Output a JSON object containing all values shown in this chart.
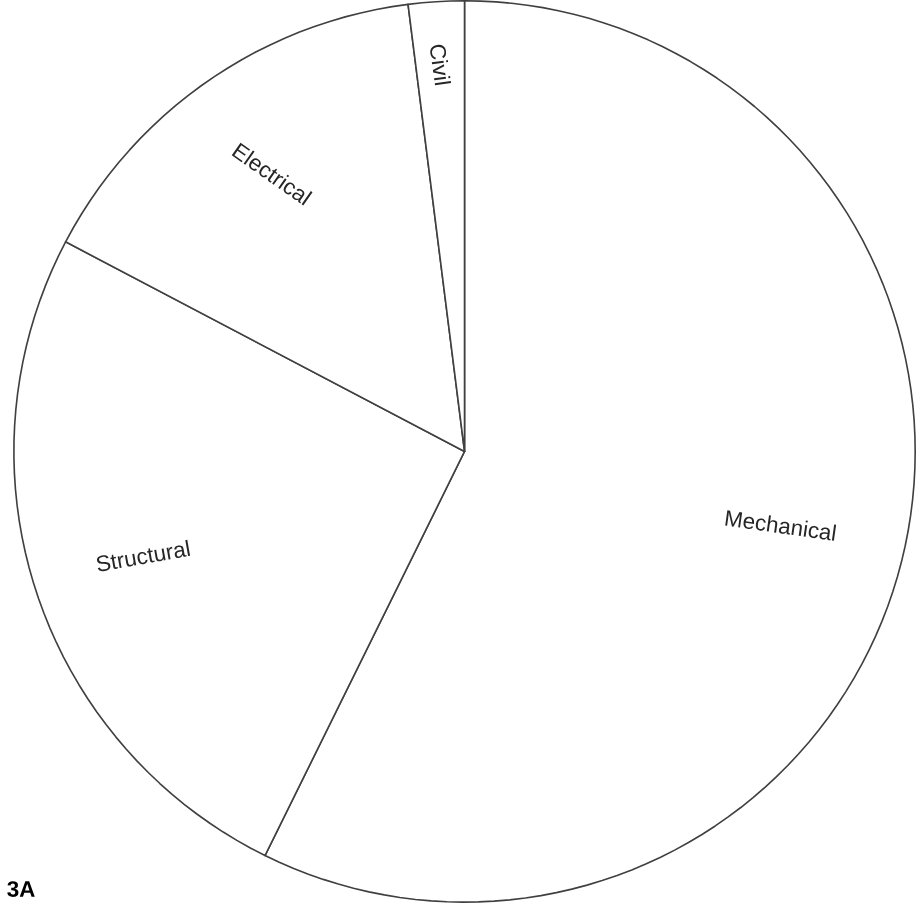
{
  "chart_data": {
    "type": "pie",
    "categories": [
      "Mechanical",
      "Structural",
      "Electrical",
      "Civil"
    ],
    "values": [
      57.3,
      25.4,
      15.3,
      2.0
    ],
    "colors": [
      "#ffffff",
      "#ffffff",
      "#ffffff",
      "#ffffff"
    ],
    "annotations": [
      "3A"
    ]
  }
}
